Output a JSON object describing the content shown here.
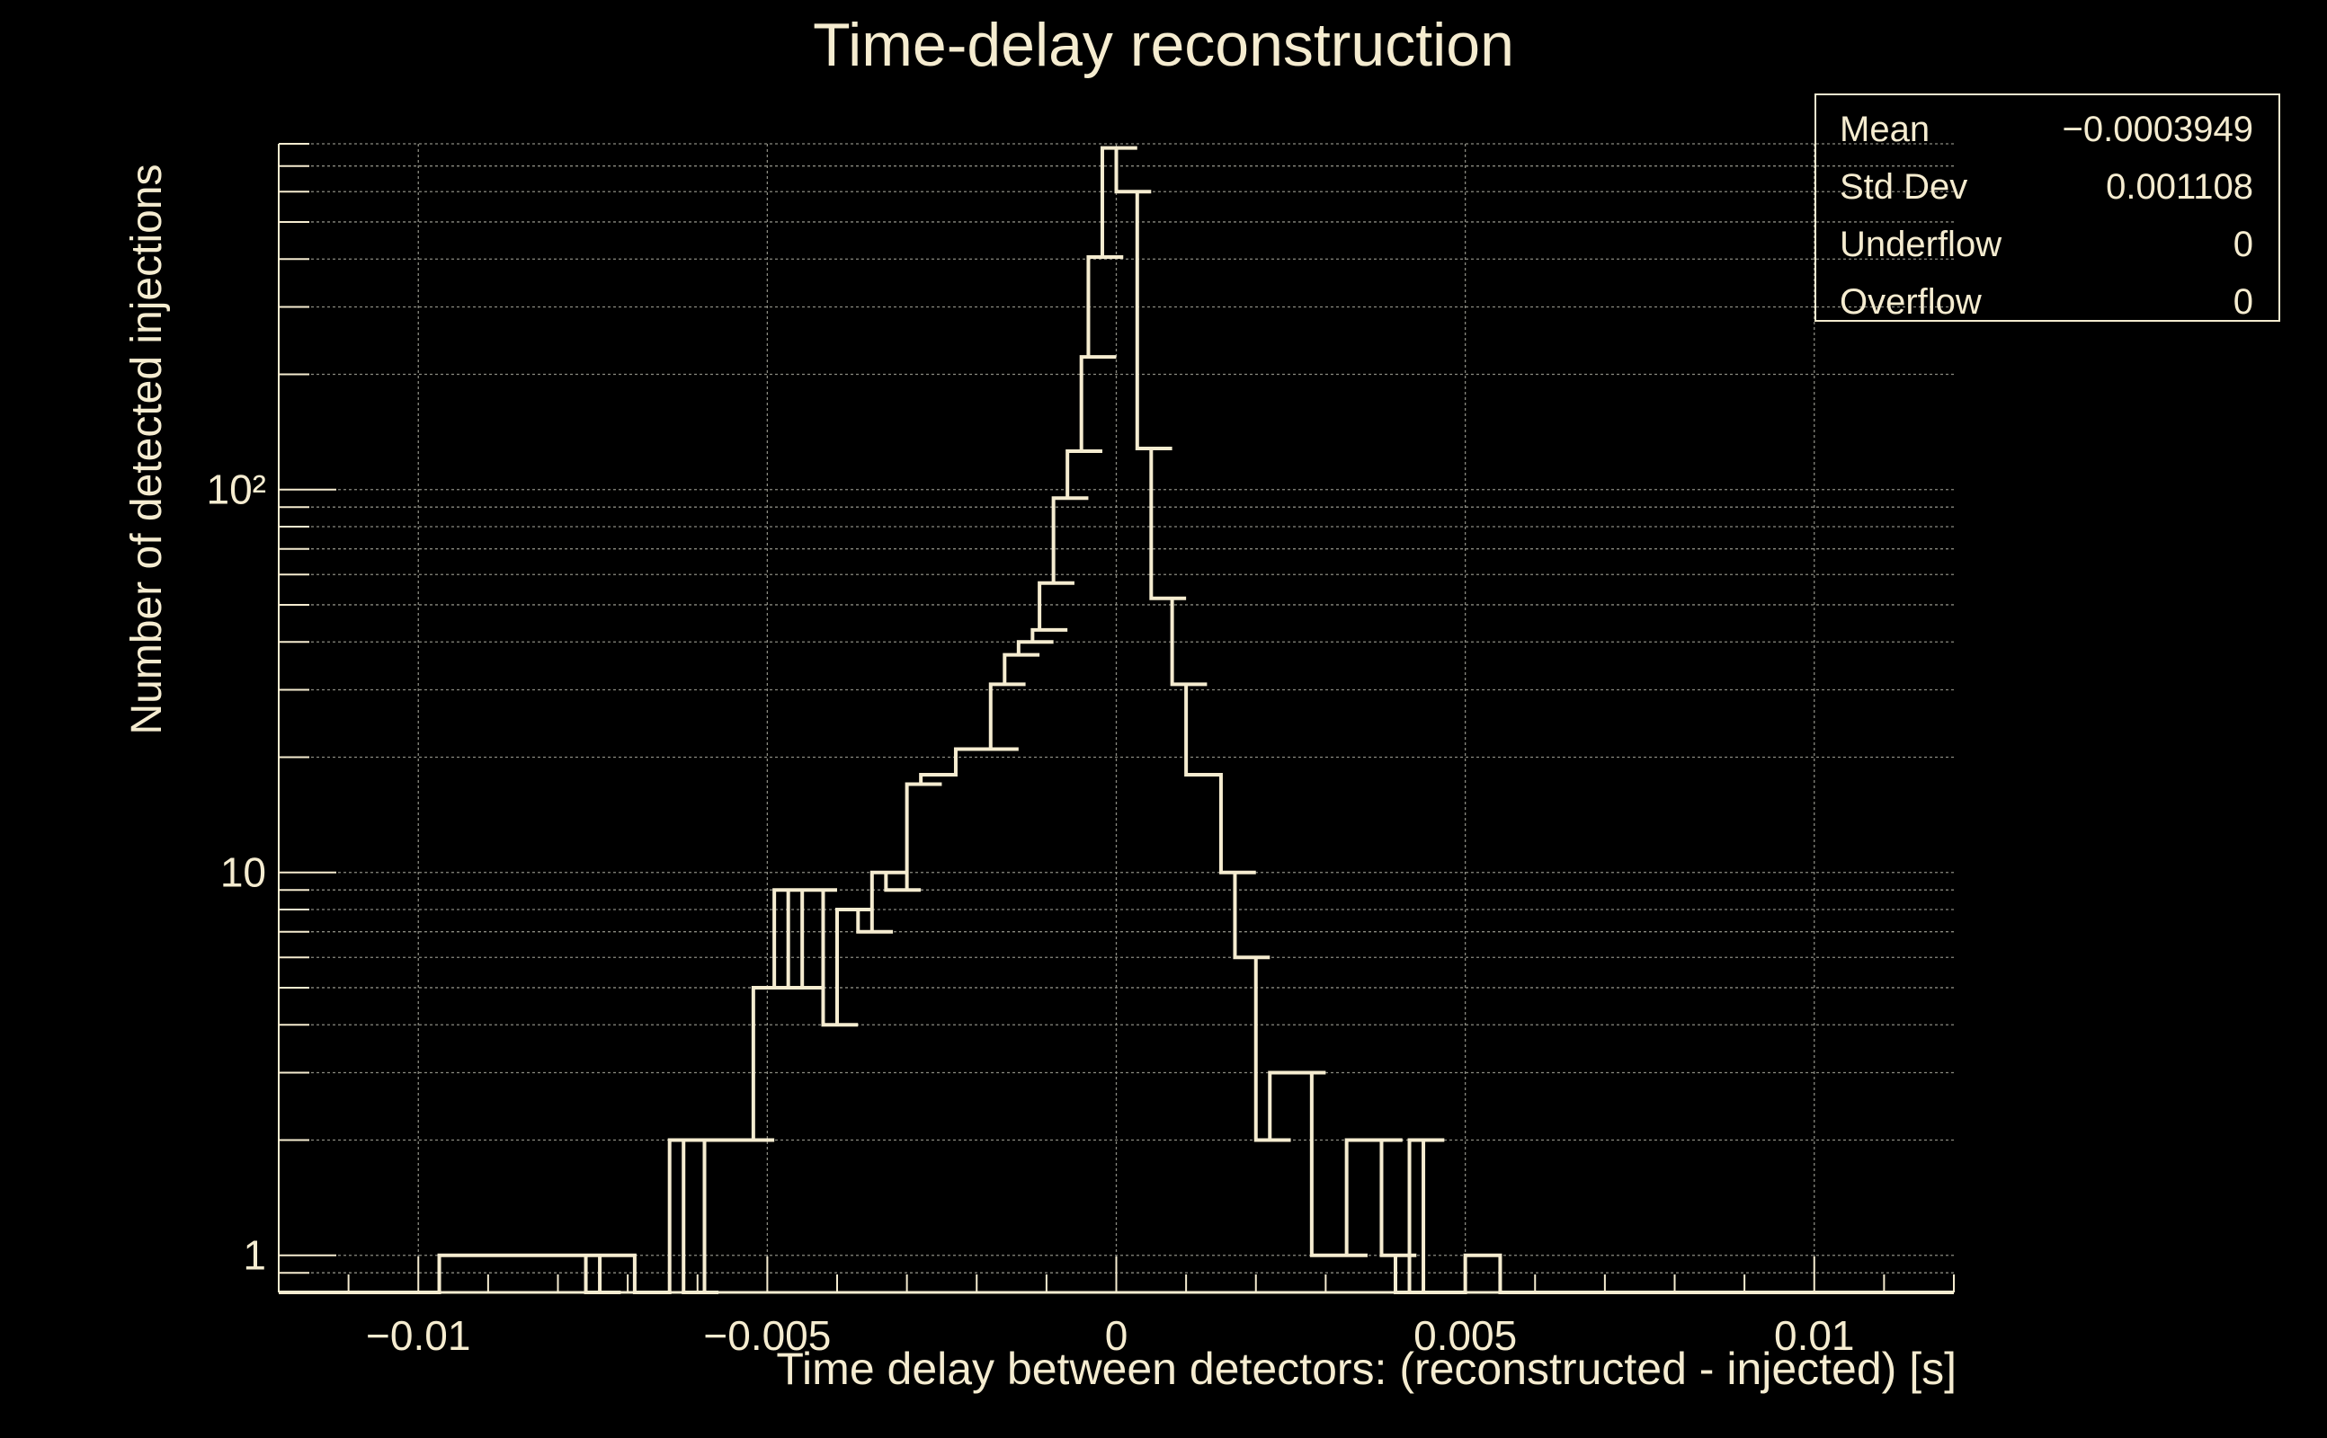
{
  "colors": {
    "background": "#000000",
    "foreground": "#f5ecd0",
    "grid": "#8a8a80"
  },
  "chart_data": {
    "type": "histogram",
    "title": "Time-delay reconstruction",
    "xlabel": "Time delay between detectors: (reconstructed - injected) [s]",
    "ylabel": "Number of detected injections",
    "xlim": [
      -0.012,
      0.012
    ],
    "ylim": [
      0.8,
      800
    ],
    "yscale": "log",
    "grid": true,
    "bin_width": 0.0005,
    "x_ticks": [
      {
        "value": -0.01,
        "label": "−0.01"
      },
      {
        "value": -0.005,
        "label": "−0.005"
      },
      {
        "value": 0,
        "label": "0"
      },
      {
        "value": 0.005,
        "label": "0.005"
      },
      {
        "value": 0.01,
        "label": "0.01"
      }
    ],
    "y_ticks": [
      {
        "value": 1,
        "label": "1"
      },
      {
        "value": 10,
        "label": "10"
      },
      {
        "value": 100,
        "label": "10²"
      }
    ],
    "bins": [
      {
        "x": -0.0097,
        "y": 1
      },
      {
        "x": -0.0083,
        "y": 1
      },
      {
        "x": -0.0078,
        "y": 1
      },
      {
        "x": -0.0076,
        "y": 0
      },
      {
        "x": -0.0074,
        "y": 1
      },
      {
        "x": -0.0069,
        "y": 0
      },
      {
        "x": -0.0064,
        "y": 2
      },
      {
        "x": -0.0062,
        "y": 0
      },
      {
        "x": -0.0059,
        "y": 2
      },
      {
        "x": -0.0054,
        "y": 2
      },
      {
        "x": -0.0052,
        "y": 5
      },
      {
        "x": -0.0049,
        "y": 9
      },
      {
        "x": -0.0047,
        "y": 5
      },
      {
        "x": -0.0045,
        "y": 9
      },
      {
        "x": -0.0042,
        "y": 4
      },
      {
        "x": -0.004,
        "y": 8
      },
      {
        "x": -0.0037,
        "y": 7
      },
      {
        "x": -0.0035,
        "y": 10
      },
      {
        "x": -0.0033,
        "y": 9
      },
      {
        "x": -0.003,
        "y": 17
      },
      {
        "x": -0.0028,
        "y": 18
      },
      {
        "x": -0.0023,
        "y": 21
      },
      {
        "x": -0.0019,
        "y": 21
      },
      {
        "x": -0.0018,
        "y": 31
      },
      {
        "x": -0.0016,
        "y": 37
      },
      {
        "x": -0.0014,
        "y": 40
      },
      {
        "x": -0.0012,
        "y": 43
      },
      {
        "x": -0.0011,
        "y": 57
      },
      {
        "x": -0.0009,
        "y": 95
      },
      {
        "x": -0.0007,
        "y": 126
      },
      {
        "x": -0.0005,
        "y": 222
      },
      {
        "x": -0.0004,
        "y": 405
      },
      {
        "x": -0.0002,
        "y": 780
      },
      {
        "x": 0.0,
        "y": 600
      },
      {
        "x": 0.0003,
        "y": 128
      },
      {
        "x": 0.0005,
        "y": 52
      },
      {
        "x": 0.0008,
        "y": 31
      },
      {
        "x": 0.001,
        "y": 18
      },
      {
        "x": 0.0015,
        "y": 10
      },
      {
        "x": 0.0017,
        "y": 6
      },
      {
        "x": 0.002,
        "y": 2
      },
      {
        "x": 0.0022,
        "y": 3
      },
      {
        "x": 0.0025,
        "y": 3
      },
      {
        "x": 0.0028,
        "y": 1
      },
      {
        "x": 0.0031,
        "y": 1
      },
      {
        "x": 0.0033,
        "y": 2
      },
      {
        "x": 0.0036,
        "y": 2
      },
      {
        "x": 0.0038,
        "y": 1
      },
      {
        "x": 0.004,
        "y": 0
      },
      {
        "x": 0.0042,
        "y": 2
      },
      {
        "x": 0.0044,
        "y": 0
      },
      {
        "x": 0.005,
        "y": 1
      }
    ],
    "stats": {
      "mean_label": "Mean",
      "mean": "−0.0003949",
      "std_label": "Std Dev",
      "std": "0.001108",
      "underflow_label": "Underflow",
      "underflow": "0",
      "overflow_label": "Overflow",
      "overflow": "0"
    }
  }
}
